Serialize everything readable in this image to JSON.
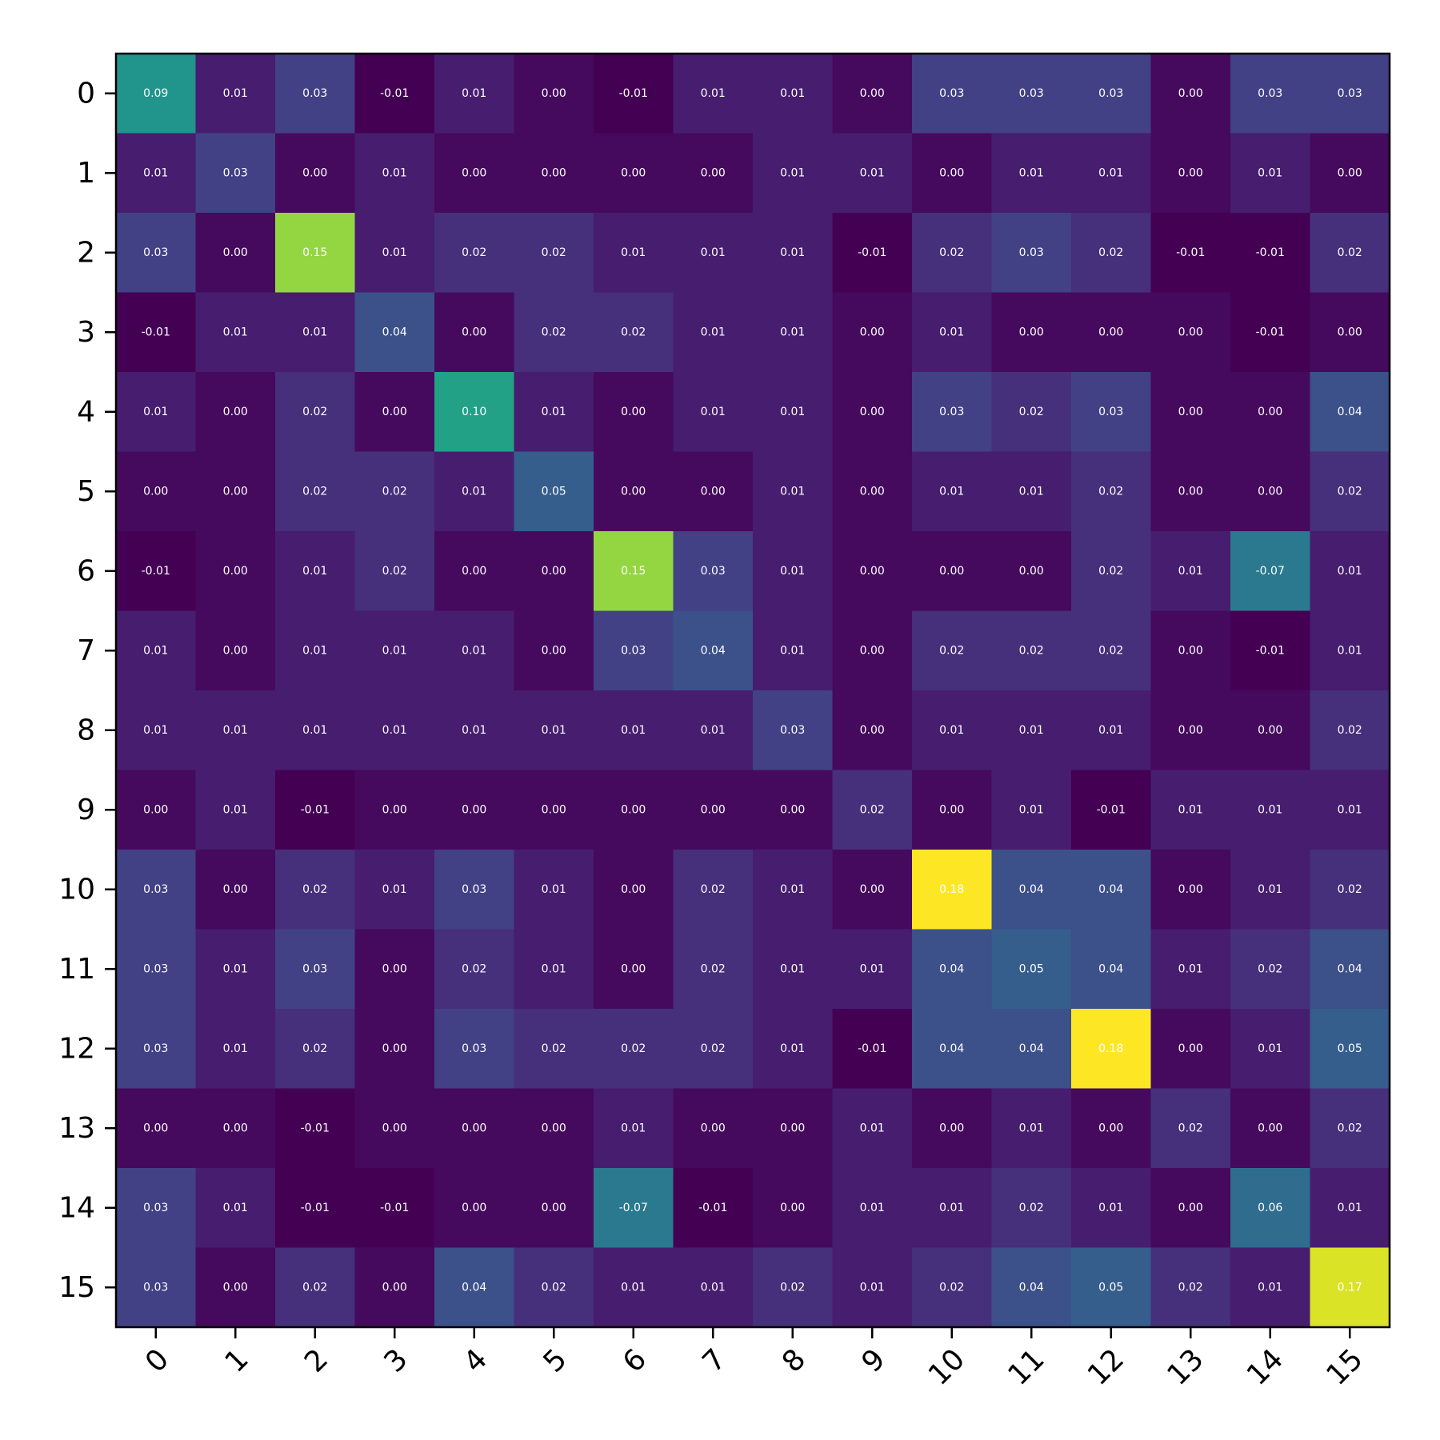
{
  "chart_data": {
    "type": "heatmap",
    "title": "",
    "xlabel": "",
    "ylabel": "",
    "x_tick_labels": [
      "0",
      "1",
      "2",
      "3",
      "4",
      "5",
      "6",
      "7",
      "8",
      "9",
      "10",
      "11",
      "12",
      "13",
      "14",
      "15"
    ],
    "y_tick_labels": [
      "0",
      "1",
      "2",
      "3",
      "4",
      "5",
      "6",
      "7",
      "8",
      "9",
      "10",
      "11",
      "12",
      "13",
      "14",
      "15"
    ],
    "colormap": "viridis",
    "color_range": [
      -0.005,
      0.18
    ],
    "colorbar": false,
    "grid": false,
    "values": [
      [
        0.09,
        0.01,
        0.03,
        -0.01,
        0.01,
        -0.0,
        -0.01,
        0.01,
        0.01,
        0.0,
        0.03,
        0.03,
        0.03,
        0.0,
        0.03,
        0.03
      ],
      [
        0.01,
        0.03,
        -0.0,
        0.01,
        0.0,
        0.0,
        -0.0,
        0.0,
        0.01,
        0.01,
        0.0,
        0.01,
        0.01,
        -0.0,
        0.01,
        0.0
      ],
      [
        0.03,
        -0.0,
        0.15,
        0.01,
        0.02,
        0.02,
        0.01,
        0.01,
        0.01,
        -0.01,
        0.02,
        0.03,
        0.02,
        -0.01,
        -0.01,
        0.02
      ],
      [
        -0.01,
        0.01,
        0.01,
        0.04,
        -0.0,
        0.02,
        0.02,
        0.01,
        0.01,
        -0.0,
        0.01,
        0.0,
        0.0,
        0.0,
        -0.01,
        0.0
      ],
      [
        0.01,
        0.0,
        0.02,
        -0.0,
        0.1,
        0.01,
        0.0,
        0.01,
        0.01,
        0.0,
        0.03,
        0.02,
        0.03,
        0.0,
        0.0,
        0.04
      ],
      [
        -0.0,
        0.0,
        0.02,
        0.02,
        0.01,
        0.05,
        0.0,
        -0.0,
        0.01,
        -0.0,
        0.01,
        0.01,
        0.02,
        0.0,
        -0.0,
        0.02
      ],
      [
        -0.01,
        -0.0,
        0.01,
        0.02,
        0.0,
        0.0,
        0.15,
        0.03,
        0.01,
        0.0,
        -0.0,
        0.0,
        0.02,
        0.01,
        -0.07,
        0.01
      ],
      [
        0.01,
        0.0,
        0.01,
        0.01,
        0.01,
        -0.0,
        0.03,
        0.04,
        0.01,
        0.0,
        0.02,
        0.02,
        0.02,
        0.0,
        -0.01,
        0.01
      ],
      [
        0.01,
        0.01,
        0.01,
        0.01,
        0.01,
        0.01,
        0.01,
        0.01,
        0.03,
        0.0,
        0.01,
        0.01,
        0.01,
        0.0,
        0.0,
        0.02
      ],
      [
        0.0,
        0.01,
        -0.01,
        -0.0,
        0.0,
        -0.0,
        0.0,
        0.0,
        0.0,
        0.02,
        -0.0,
        0.01,
        -0.01,
        0.01,
        0.01,
        0.01
      ],
      [
        0.03,
        0.0,
        0.02,
        0.01,
        0.03,
        0.01,
        -0.0,
        0.02,
        0.01,
        -0.0,
        0.18,
        0.04,
        0.04,
        0.0,
        0.01,
        0.02
      ],
      [
        0.03,
        0.01,
        0.03,
        0.0,
        0.02,
        0.01,
        0.0,
        0.02,
        0.01,
        0.01,
        0.04,
        0.05,
        0.04,
        0.01,
        0.02,
        0.04
      ],
      [
        0.03,
        0.01,
        0.02,
        0.0,
        0.03,
        0.02,
        0.02,
        0.02,
        0.01,
        -0.01,
        0.04,
        0.04,
        0.18,
        0.0,
        0.01,
        0.05
      ],
      [
        0.0,
        -0.0,
        -0.01,
        0.0,
        0.0,
        0.0,
        0.01,
        0.0,
        0.0,
        0.01,
        0.0,
        0.01,
        0.0,
        0.02,
        0.0,
        0.02
      ],
      [
        0.03,
        0.01,
        -0.01,
        -0.01,
        0.0,
        -0.0,
        -0.07,
        -0.01,
        0.0,
        0.01,
        0.01,
        0.02,
        0.01,
        0.0,
        0.06,
        0.01
      ],
      [
        0.03,
        0.0,
        0.02,
        0.0,
        0.04,
        0.02,
        0.01,
        0.01,
        0.02,
        0.01,
        0.02,
        0.04,
        0.05,
        0.02,
        0.01,
        0.17
      ]
    ],
    "color_overrides": [
      {
        "row": 6,
        "col": 14,
        "equivalent_value": 0.07
      },
      {
        "row": 14,
        "col": 6,
        "equivalent_value": 0.07
      }
    ]
  }
}
